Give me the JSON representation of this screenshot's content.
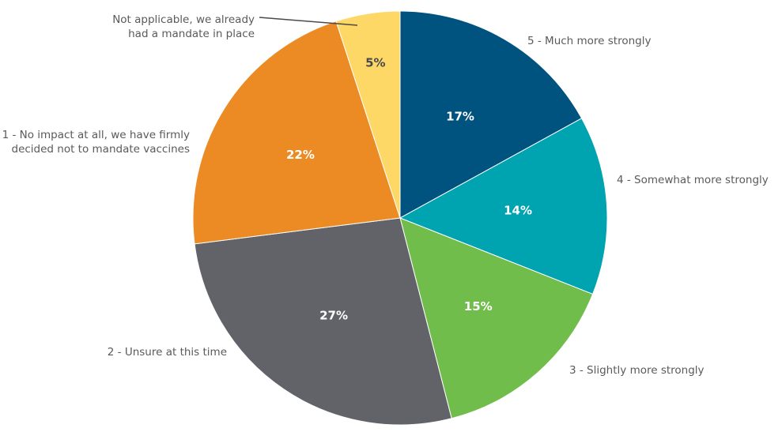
{
  "chart_data": {
    "type": "pie",
    "slices": [
      {
        "label": "5 - Much more strongly",
        "value": 17,
        "display": "17%",
        "color": "#00527f",
        "text_color": "#ffffff"
      },
      {
        "label": "4 - Somewhat more strongly",
        "value": 14,
        "display": "14%",
        "color": "#00a3b0",
        "text_color": "#ffffff"
      },
      {
        "label": "3 - Slightly more strongly",
        "value": 15,
        "display": "15%",
        "color": "#71bd4c",
        "text_color": "#ffffff"
      },
      {
        "label": "2 - Unsure at this time",
        "value": 27,
        "display": "27%",
        "color": "#626368",
        "text_color": "#ffffff"
      },
      {
        "label": "1 - No impact at all, we have firmly decided not to mandate vaccines",
        "label_lines": [
          "1 - No impact at all, we have firmly",
          "decided not to mandate vaccines"
        ],
        "value": 22,
        "display": "22%",
        "color": "#ec8a24",
        "text_color": "#ffffff"
      },
      {
        "label": "Not applicable, we already had a mandate in place",
        "label_lines": [
          "Not applicable, we already",
          "had a mandate in place"
        ],
        "value": 5,
        "display": "5%",
        "color": "#fdd867",
        "text_color": "#4a4a4a"
      }
    ]
  }
}
